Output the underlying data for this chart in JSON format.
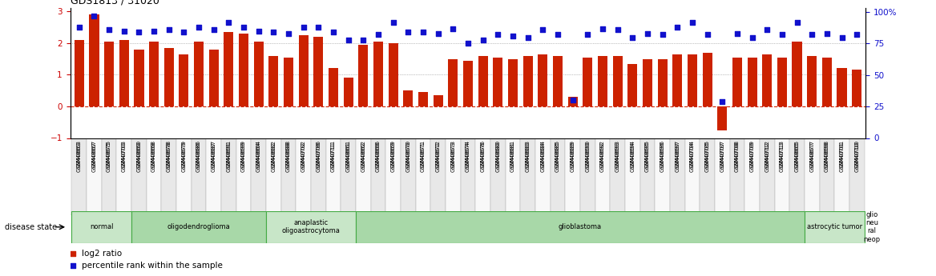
{
  "title": "GDS1813 / 31020",
  "samples": [
    "GSM40663",
    "GSM40667",
    "GSM40675",
    "GSM40703",
    "GSM40660",
    "GSM40668",
    "GSM40678",
    "GSM40679",
    "GSM40686",
    "GSM40687",
    "GSM40691",
    "GSM40699",
    "GSM40664",
    "GSM40682",
    "GSM40688",
    "GSM40702",
    "GSM40706",
    "GSM40711",
    "GSM40661",
    "GSM40662",
    "GSM40666",
    "GSM40669",
    "GSM40670",
    "GSM40671",
    "GSM40672",
    "GSM40673",
    "GSM40674",
    "GSM40676",
    "GSM40680",
    "GSM40681",
    "GSM40683",
    "GSM40684",
    "GSM40685",
    "GSM40689",
    "GSM40690",
    "GSM40692",
    "GSM40693",
    "GSM40694",
    "GSM40695",
    "GSM40696",
    "GSM40697",
    "GSM40704",
    "GSM40705",
    "GSM40707",
    "GSM40708",
    "GSM40709",
    "GSM40712",
    "GSM40713",
    "GSM40665",
    "GSM40677",
    "GSM40698",
    "GSM40701",
    "GSM40710"
  ],
  "log2_ratio": [
    2.1,
    2.9,
    2.05,
    2.1,
    1.8,
    2.05,
    1.85,
    1.65,
    2.05,
    1.8,
    2.35,
    2.3,
    2.05,
    1.6,
    1.55,
    2.25,
    2.2,
    1.2,
    0.9,
    1.95,
    2.05,
    2.0,
    0.5,
    0.45,
    0.35,
    1.5,
    1.45,
    1.6,
    1.55,
    1.5,
    1.6,
    1.65,
    1.6,
    0.3,
    1.55,
    1.6,
    1.6,
    1.35,
    1.5,
    1.5,
    1.65,
    1.65,
    1.7,
    -0.75,
    1.55,
    1.55,
    1.65,
    1.55,
    2.05,
    1.6,
    1.55,
    1.2,
    1.15
  ],
  "percentile_rank": [
    88,
    97,
    86,
    85,
    84,
    85,
    86,
    84,
    88,
    86,
    92,
    88,
    85,
    84,
    83,
    88,
    88,
    84,
    78,
    78,
    82,
    92,
    84,
    84,
    83,
    87,
    75,
    78,
    82,
    81,
    80,
    86,
    82,
    30,
    82,
    87,
    86,
    80,
    83,
    82,
    88,
    92,
    82,
    29,
    83,
    80,
    86,
    82,
    92,
    82,
    83,
    80,
    82
  ],
  "disease_groups": [
    {
      "label": "normal",
      "start": 0,
      "end": 3,
      "color": "#c8e6c8"
    },
    {
      "label": "oligodendroglioma",
      "start": 4,
      "end": 12,
      "color": "#a8d8a8"
    },
    {
      "label": "anaplastic\noligoastrocytoma",
      "start": 13,
      "end": 18,
      "color": "#c8e6c8"
    },
    {
      "label": "glioblastoma",
      "start": 19,
      "end": 48,
      "color": "#a8d8a8"
    },
    {
      "label": "astrocytic tumor",
      "start": 49,
      "end": 52,
      "color": "#c8e6c8"
    },
    {
      "label": "glio\nneu\nral\nneop",
      "start": 53,
      "end": 53,
      "color": "#80c080"
    }
  ],
  "bar_color": "#cc2200",
  "dot_color": "#1111cc",
  "ylim_left": [
    -1.0,
    3.1
  ],
  "ylim_right": [
    0,
    103
  ],
  "yticks_left": [
    -1,
    0,
    1,
    2,
    3
  ],
  "yticks_right": [
    0,
    25,
    50,
    75,
    100
  ],
  "hlines": [
    0,
    1,
    2
  ],
  "bg_color": "#ffffff"
}
